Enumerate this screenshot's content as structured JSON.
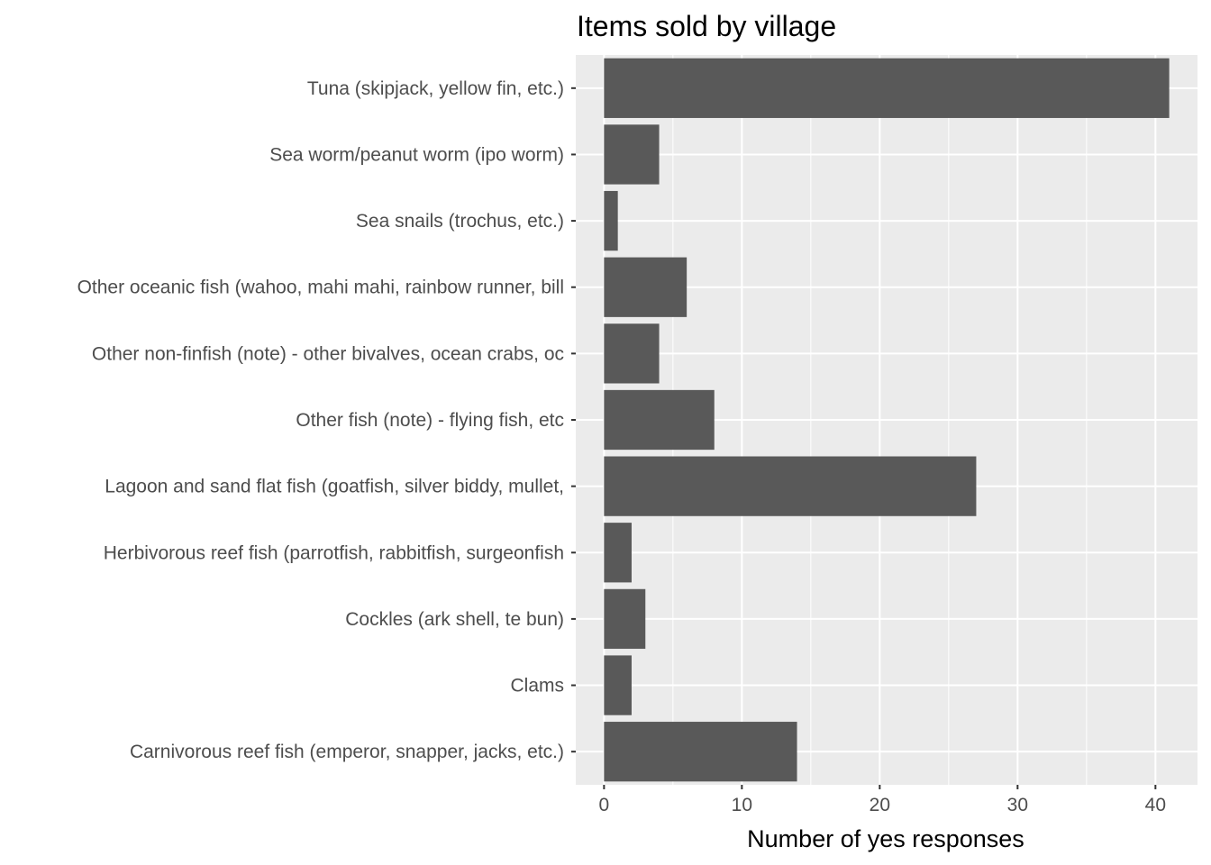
{
  "chart_data": {
    "type": "bar",
    "orientation": "horizontal",
    "title": "Items sold by village",
    "xlabel": "Number of yes responses",
    "ylabel": "",
    "categories": [
      "Tuna (skipjack, yellow fin, etc.)",
      "Sea worm/peanut worm (ipo worm)",
      "Sea snails (trochus, etc.)",
      "Other oceanic fish (wahoo, mahi mahi, rainbow runner, bill",
      "Other non-finfish (note) - other bivalves, ocean crabs, oc",
      "Other fish (note) - flying fish, etc",
      "Lagoon and sand flat fish (goatfish, silver biddy, mullet,",
      "Herbivorous reef fish (parrotfish, rabbitfish, surgeonfish",
      "Cockles (ark shell, te bun)",
      "Clams",
      "Carnivorous reef fish (emperor, snapper, jacks, etc.)"
    ],
    "values": [
      41,
      4,
      1,
      6,
      4,
      8,
      27,
      2,
      3,
      2,
      14
    ],
    "xlim": [
      -2.05,
      43.05
    ],
    "xticks": [
      0,
      10,
      20,
      30,
      40
    ],
    "xtick_labels": [
      "0",
      "10",
      "20",
      "30",
      "40"
    ],
    "grid": true,
    "legend": "none",
    "colors": {
      "bar": "#595959",
      "panel_background": "#ebebeb",
      "grid": "#ffffff",
      "text": "#4d4d4d"
    }
  }
}
